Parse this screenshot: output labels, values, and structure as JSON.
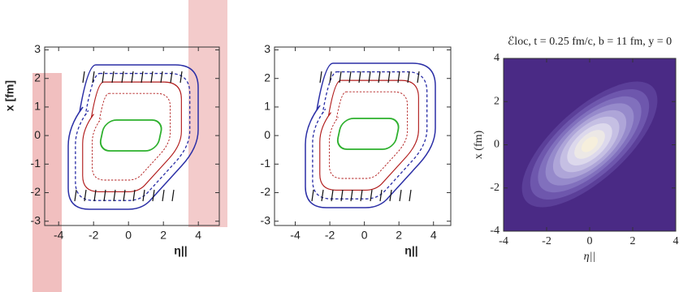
{
  "chart_data": [
    {
      "type": "contour",
      "xlabel": "η||",
      "ylabel": "x [fm]",
      "xlim": [
        -4.8,
        5.2
      ],
      "ylim": [
        -3.15,
        3.1
      ],
      "xticks": [
        -4,
        -2,
        0,
        2,
        4
      ],
      "yticks": [
        -3,
        -2,
        -1,
        0,
        1,
        2,
        3
      ]
    },
    {
      "type": "contour",
      "xlabel": "η||",
      "xlim": [
        -5.2,
        5.0
      ],
      "ylim": [
        -3.15,
        3.1
      ],
      "xticks": [
        -4,
        -2,
        0,
        2,
        4
      ],
      "yticks": [
        -3,
        -2,
        -1,
        0,
        1,
        2,
        3
      ]
    },
    {
      "type": "filled-contour",
      "title": "ℰloc, t = 0.25 fm/c, b = 11 fm, y = 0",
      "xlabel": "η||",
      "ylabel": "x (fm)",
      "xlim": [
        -4,
        4
      ],
      "ylim": [
        -4,
        4
      ],
      "xticks": [
        -4,
        -2,
        0,
        2,
        4
      ],
      "yticks": [
        -4,
        -2,
        0,
        2,
        4
      ]
    }
  ]
}
